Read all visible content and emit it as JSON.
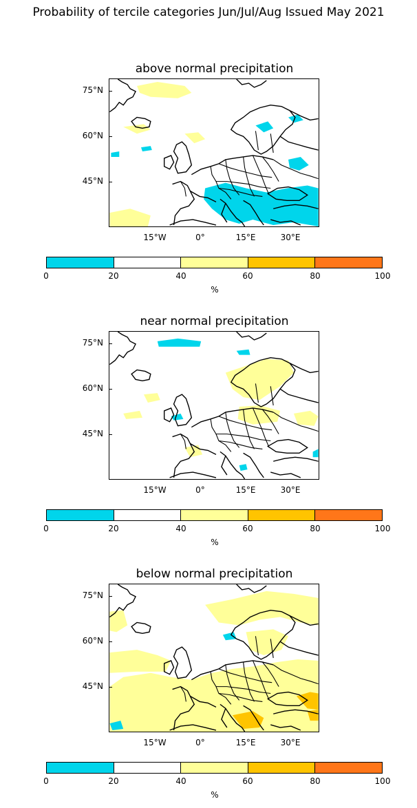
{
  "title": "Probability of tercile categories Jun/Jul/Aug Issued May 2021",
  "lat_labels": [
    "75°N",
    "60°N",
    "45°N"
  ],
  "lon_labels": [
    "15°W",
    "0°",
    "15°E",
    "30°E"
  ],
  "colorbar": {
    "ticks": [
      "0",
      "20",
      "40",
      "60",
      "80",
      "100"
    ],
    "unit": "%",
    "colors": [
      "#00d5eb",
      "#ffffff",
      "#ffff99",
      "#ffc400",
      "#ff7619"
    ],
    "bins": [
      [
        0,
        20
      ],
      [
        20,
        40
      ],
      [
        40,
        60
      ],
      [
        60,
        80
      ],
      [
        80,
        100
      ]
    ]
  },
  "panels": [
    {
      "title": "above normal precipitation",
      "dominant_categories": [
        "0-20",
        "20-40",
        "40-60"
      ],
      "notes": "cyan (0-20%) over Italy, Adriatic, Balkans, Turkey, parts of Scandinavia; yellow (40-60%) patches over North Atlantic, southwest Atlantic"
    },
    {
      "title": "near normal precipitation",
      "dominant_categories": [
        "0-20",
        "20-40",
        "40-60"
      ],
      "notes": "cyan streak near Greenland Sea; scattered yellow (40-60%) over Scandinavia, central Europe"
    },
    {
      "title": "below normal precipitation",
      "dominant_categories": [
        "20-40",
        "40-60",
        "60-80"
      ],
      "notes": "yellow (40-60%) across southern Europe, North Atlantic, Scandinavia; orange (60-80%) over Mediterranean/North Africa and Turkey"
    }
  ]
}
